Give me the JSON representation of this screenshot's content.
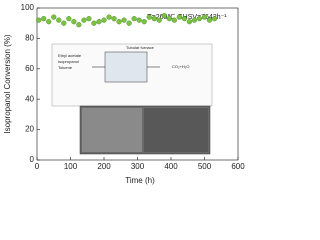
{
  "chart_data": {
    "type": "scatter",
    "annotation": "T=260℃ GHSV=7643h⁻¹",
    "xlabel": "Time (h)",
    "ylabel": "Isopropanol Conversion (%)",
    "inset_labels": [
      "Ethyl acetate",
      "Isopropanol",
      "Toluene",
      "Tubular furnace",
      "CO₂+H₂O"
    ],
    "series": [
      {
        "name": "Isopropanol",
        "color": "#7cc242",
        "x": [
          5,
          20,
          35,
          50,
          65,
          80,
          95,
          110,
          125,
          140,
          155,
          170,
          185,
          200,
          215,
          230,
          245,
          260,
          275,
          290,
          305,
          320,
          335,
          350,
          365,
          380,
          395,
          410,
          425,
          440,
          455,
          470,
          485,
          500,
          515,
          530
        ],
        "values": [
          92,
          93,
          91,
          94,
          92,
          90,
          93,
          91,
          89,
          92,
          93,
          90,
          91,
          92,
          94,
          93,
          91,
          92,
          90,
          93,
          92,
          91,
          94,
          93,
          92,
          95,
          93,
          92,
          94,
          93,
          91,
          92,
          93,
          94,
          92,
          93
        ]
      }
    ],
    "xlim": [
      0,
      600
    ],
    "xticks": [
      0,
      100,
      200,
      300,
      400,
      500,
      600
    ],
    "ylim": [
      0,
      100
    ],
    "yticks": [
      0,
      20,
      40,
      60,
      80,
      100
    ]
  }
}
